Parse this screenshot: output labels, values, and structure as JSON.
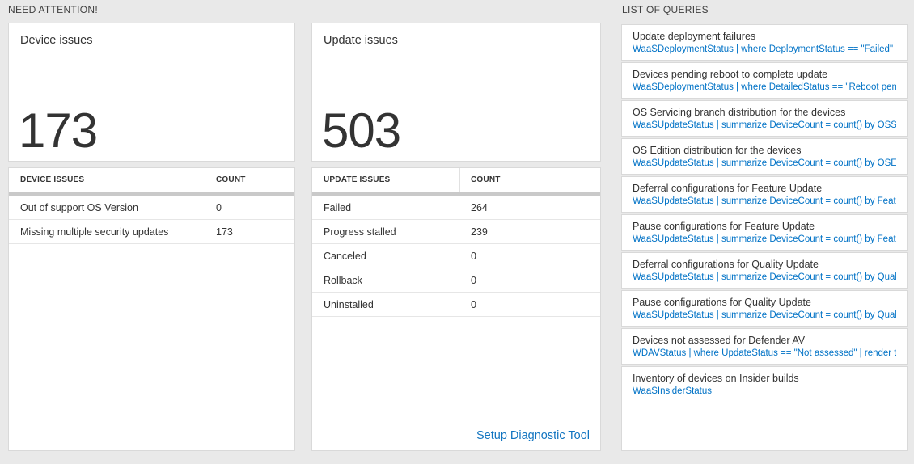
{
  "sections": {
    "need_attention": "NEED ATTENTION!",
    "list_of_queries": "LIST OF QUERIES"
  },
  "device_card": {
    "title": "Device issues",
    "big_count": "173",
    "headers": {
      "issue": "DEVICE ISSUES",
      "count": "COUNT"
    },
    "rows": [
      {
        "label": "Out of support OS Version",
        "count": "0"
      },
      {
        "label": "Missing multiple security updates",
        "count": "173"
      }
    ]
  },
  "update_card": {
    "title": "Update issues",
    "big_count": "503",
    "headers": {
      "issue": "UPDATE ISSUES",
      "count": "COUNT"
    },
    "rows": [
      {
        "label": "Failed",
        "count": "264"
      },
      {
        "label": "Progress stalled",
        "count": "239"
      },
      {
        "label": "Canceled",
        "count": "0"
      },
      {
        "label": "Rollback",
        "count": "0"
      },
      {
        "label": "Uninstalled",
        "count": "0"
      }
    ],
    "footer_link": "Setup Diagnostic Tool"
  },
  "queries": [
    {
      "title": "Update deployment failures",
      "query": "WaaSDeploymentStatus | where DeploymentStatus == \"Failed\" |..."
    },
    {
      "title": "Devices pending reboot to complete update",
      "query": "WaaSDeploymentStatus | where DetailedStatus == \"Reboot pend..."
    },
    {
      "title": "OS Servicing branch distribution for the devices",
      "query": "WaaSUpdateStatus | summarize DeviceCount = count() by OSSer..."
    },
    {
      "title": "OS Edition distribution for the devices",
      "query": "WaaSUpdateStatus | summarize DeviceCount = count() by OSEdit..."
    },
    {
      "title": "Deferral configurations for Feature Update",
      "query": "WaaSUpdateStatus | summarize DeviceCount = count() by Featur..."
    },
    {
      "title": "Pause configurations for Feature Update",
      "query": "WaaSUpdateStatus | summarize DeviceCount = count() by Featur..."
    },
    {
      "title": "Deferral configurations for Quality Update",
      "query": "WaaSUpdateStatus | summarize DeviceCount = count() by Qualit..."
    },
    {
      "title": "Pause configurations for Quality Update",
      "query": "WaaSUpdateStatus | summarize DeviceCount = count() by Qualit..."
    },
    {
      "title": "Devices not assessed for Defender AV",
      "query": "WDAVStatus | where UpdateStatus == \"Not assessed\" | render ta..."
    },
    {
      "title": "Inventory of devices on Insider builds",
      "query": "WaaSInsiderStatus"
    }
  ],
  "colors": {
    "background": "#e9e9e9",
    "accent_blue": "#0072c6",
    "link_blue": "#1174c0",
    "text": "#333333"
  }
}
